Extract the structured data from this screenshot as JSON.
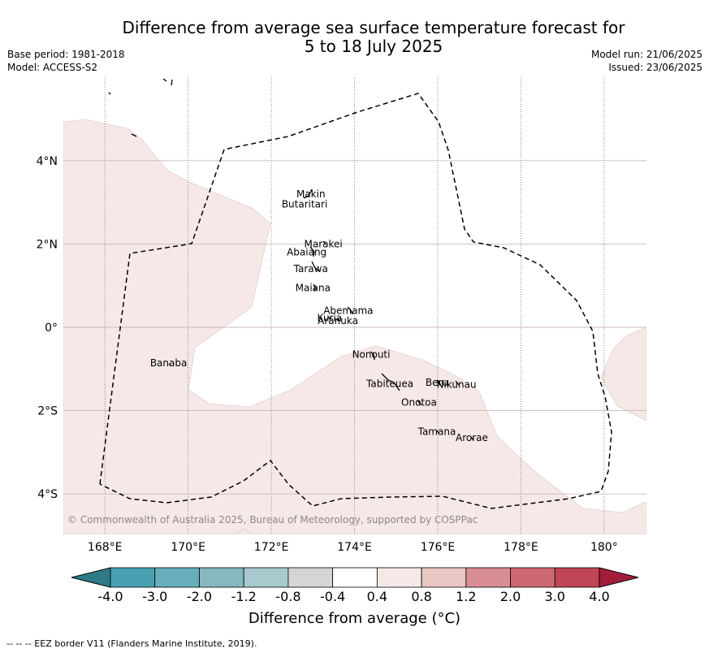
{
  "title_line1": "Difference from average sea surface temperature forecast for",
  "title_line2": "5 to 18 July 2025",
  "base_period": "Base period: 1981-2018",
  "model": "Model: ACCESS-S2",
  "model_run": "Model run: 21/06/2025",
  "issued": "Issued: 23/06/2025",
  "copyright": "© Commonwealth of Australia 2025, Bureau of Meteorology, supported by COSPPac",
  "footer": "--  --  -- EEZ border V11 (Flanders Marine Institute, 2019).",
  "colorbar": {
    "title": "Difference from average (°C)",
    "ticks": [
      "-4.0",
      "-3.0",
      "-2.0",
      "-1.2",
      "-0.8",
      "-0.4",
      "0.4",
      "0.8",
      "1.2",
      "2.0",
      "3.0",
      "4.0"
    ],
    "colors": {
      "under": "#2f7a86",
      "bins": [
        "#46a0b0",
        "#67adba",
        "#86b8c2",
        "#a8c9cd",
        "#d4d6d6",
        "#ffffff",
        "#f5e8e6",
        "#e8c6c2",
        "#d98e93",
        "#cd6873",
        "#c04555"
      ],
      "over": "#a31d3a"
    }
  },
  "map": {
    "lon_ticks": [
      "168°E",
      "170°E",
      "172°E",
      "174°E",
      "176°E",
      "178°E",
      "180°"
    ],
    "lat_ticks": [
      "4°N",
      "2°N",
      "0°",
      "2°S",
      "4°S"
    ],
    "fill_color": "#f5e8e6",
    "islands": [
      {
        "name": "Makin",
        "lon": 172.95,
        "lat": 3.2
      },
      {
        "name": "Butaritari",
        "lon": 172.8,
        "lat": 2.95
      },
      {
        "name": "Marakei",
        "lon": 173.25,
        "lat": 2.0
      },
      {
        "name": "Abaiang",
        "lon": 172.85,
        "lat": 1.8
      },
      {
        "name": "Tarawa",
        "lon": 172.95,
        "lat": 1.4
      },
      {
        "name": "Maiana",
        "lon": 173.0,
        "lat": 0.95
      },
      {
        "name": "Abemama",
        "lon": 173.85,
        "lat": 0.4
      },
      {
        "name": "Kuria",
        "lon": 173.4,
        "lat": 0.22
      },
      {
        "name": "Aranuka",
        "lon": 173.6,
        "lat": 0.16
      },
      {
        "name": "Nonouti",
        "lon": 174.4,
        "lat": -0.65
      },
      {
        "name": "Banaba",
        "lon": 169.53,
        "lat": -0.86
      },
      {
        "name": "Tabiteuea",
        "lon": 174.85,
        "lat": -1.35
      },
      {
        "name": "Beru",
        "lon": 175.98,
        "lat": -1.33
      },
      {
        "name": "Nikunau",
        "lon": 176.45,
        "lat": -1.37
      },
      {
        "name": "Onotoa",
        "lon": 175.55,
        "lat": -1.8
      },
      {
        "name": "Tamana",
        "lon": 175.98,
        "lat": -2.5
      },
      {
        "name": "Arorae",
        "lon": 176.82,
        "lat": -2.65
      }
    ]
  }
}
